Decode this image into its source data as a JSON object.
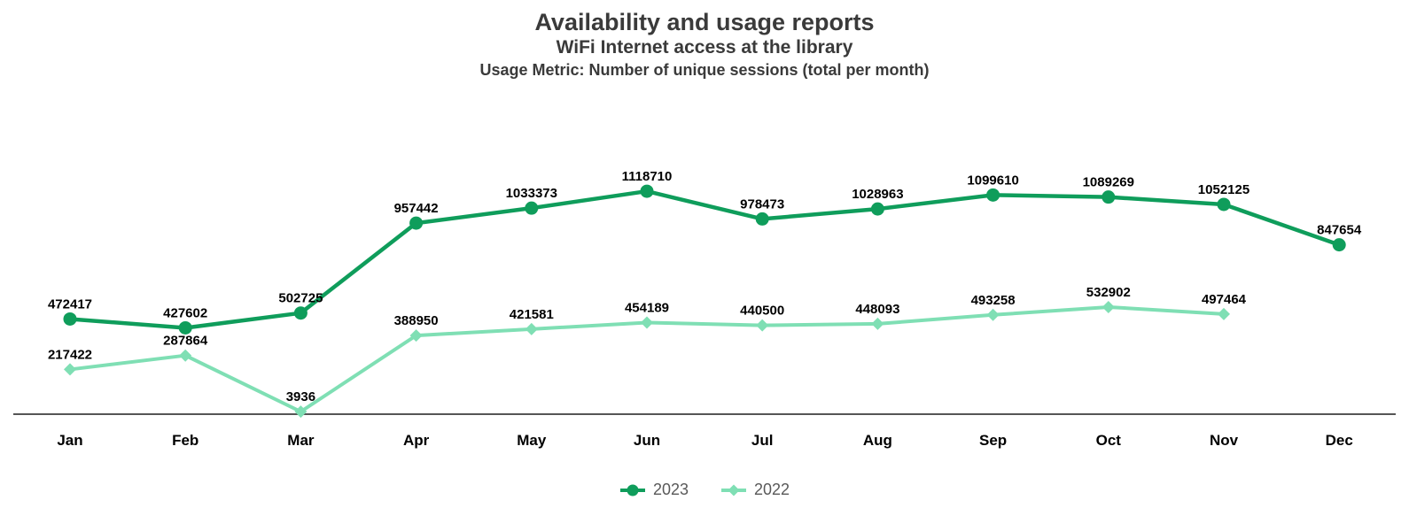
{
  "chart_data": {
    "type": "line",
    "title": "Availability and usage reports",
    "subtitle": "WiFi Internet access at the library",
    "metric": "Usage Metric: Number of unique sessions (total per month)",
    "categories": [
      "Jan",
      "Feb",
      "Mar",
      "Apr",
      "May",
      "Jun",
      "Jul",
      "Aug",
      "Sep",
      "Oct",
      "Nov",
      "Dec"
    ],
    "series": [
      {
        "name": "2023",
        "marker": "circle",
        "color": "#0f9d5b",
        "values": [
          472417,
          427602,
          502725,
          957442,
          1033373,
          1118710,
          978473,
          1028963,
          1099610,
          1089269,
          1052125,
          847654
        ]
      },
      {
        "name": "2022",
        "marker": "diamond",
        "color": "#7fdfb4",
        "values": [
          217422,
          287864,
          3936,
          388950,
          421581,
          454189,
          440500,
          448093,
          493258,
          532902,
          497464,
          null
        ]
      }
    ],
    "xlabel": "",
    "ylabel": "",
    "ylim": [
      0,
      1150000
    ],
    "grid": false,
    "data_labels_shown": true,
    "legend_position": "bottom",
    "colors": {
      "title_text": "#3a3a3a",
      "data_label_text": "#000000",
      "month_label_text": "#000000",
      "axis_line": "#555555",
      "legend_text": "#595959",
      "background": "#ffffff"
    }
  }
}
